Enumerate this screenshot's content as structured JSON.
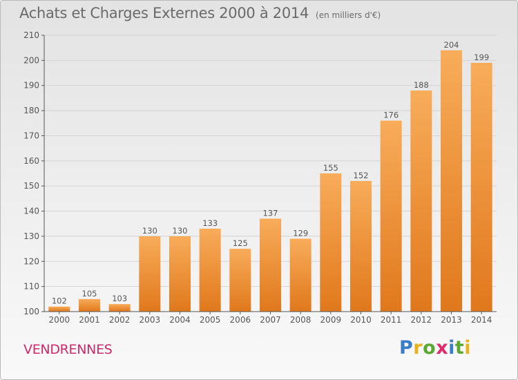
{
  "header": {
    "title": "Achats et Charges Externes 2000 à 2014",
    "subtitle": "(en milliers d'€)"
  },
  "footer": {
    "commune": "VENDRENNES",
    "logo_text": "Proxiti",
    "logo_colors": [
      "#3a7dc9",
      "#e8b21e",
      "#5aa832",
      "#e02b6a",
      "#3a7dc9",
      "#5aa832",
      "#e8b21e"
    ]
  },
  "colors": {
    "bar_light": "#f8ac5a",
    "bar_dark": "#e0781c",
    "axis": "#555555",
    "grid": "#d4d4d4",
    "text": "#555555"
  },
  "chart_data": {
    "type": "bar",
    "title": "Achats et Charges Externes 2000 à 2014",
    "subtitle": "(en milliers d'€)",
    "xlabel": "",
    "ylabel": "",
    "categories": [
      "2000",
      "2001",
      "2002",
      "2003",
      "2004",
      "2005",
      "2006",
      "2007",
      "2008",
      "2009",
      "2010",
      "2011",
      "2012",
      "2013",
      "2014"
    ],
    "values": [
      102,
      105,
      103,
      130,
      130,
      133,
      125,
      137,
      129,
      155,
      152,
      176,
      188,
      204,
      199
    ],
    "ylim": [
      100,
      210
    ],
    "yticks": [
      100,
      110,
      120,
      130,
      140,
      150,
      160,
      170,
      180,
      190,
      200,
      210
    ],
    "grid": true,
    "legend": "none",
    "data_labels": true
  }
}
